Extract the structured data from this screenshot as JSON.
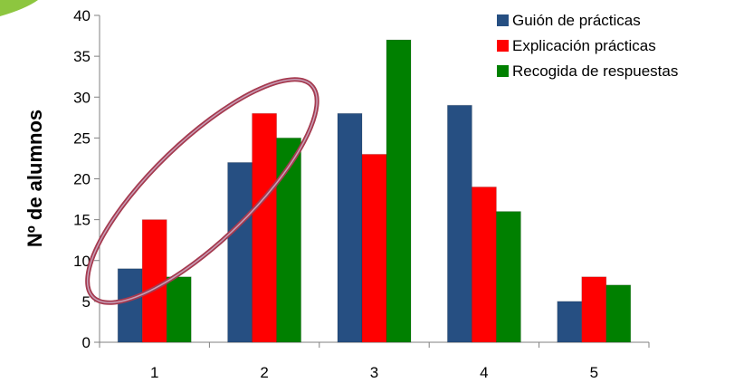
{
  "chart_data": {
    "type": "bar",
    "ylabel": "Nº de alumnos",
    "xlabel": "",
    "ylim": [
      0,
      40
    ],
    "yticks": [
      "0",
      "5",
      "10",
      "15",
      "20",
      "25",
      "30",
      "35",
      "40"
    ],
    "categories": [
      "1",
      "2",
      "3",
      "4",
      "5"
    ],
    "legend_position": "top-right",
    "grid": false,
    "series": [
      {
        "name": "Guión de prácticas",
        "color": "#264f82",
        "values": [
          9,
          22,
          28,
          29,
          5
        ]
      },
      {
        "name": "Explicación prácticas",
        "color": "#ff0000",
        "values": [
          15,
          28,
          23,
          19,
          8
        ]
      },
      {
        "name": "Recogida de respuestas",
        "color": "#008000",
        "values": [
          8,
          25,
          37,
          16,
          7
        ]
      }
    ],
    "annotation": {
      "shape": "ellipse",
      "color": "#a53a4f",
      "encloses_categories": [
        "1",
        "2"
      ]
    }
  }
}
